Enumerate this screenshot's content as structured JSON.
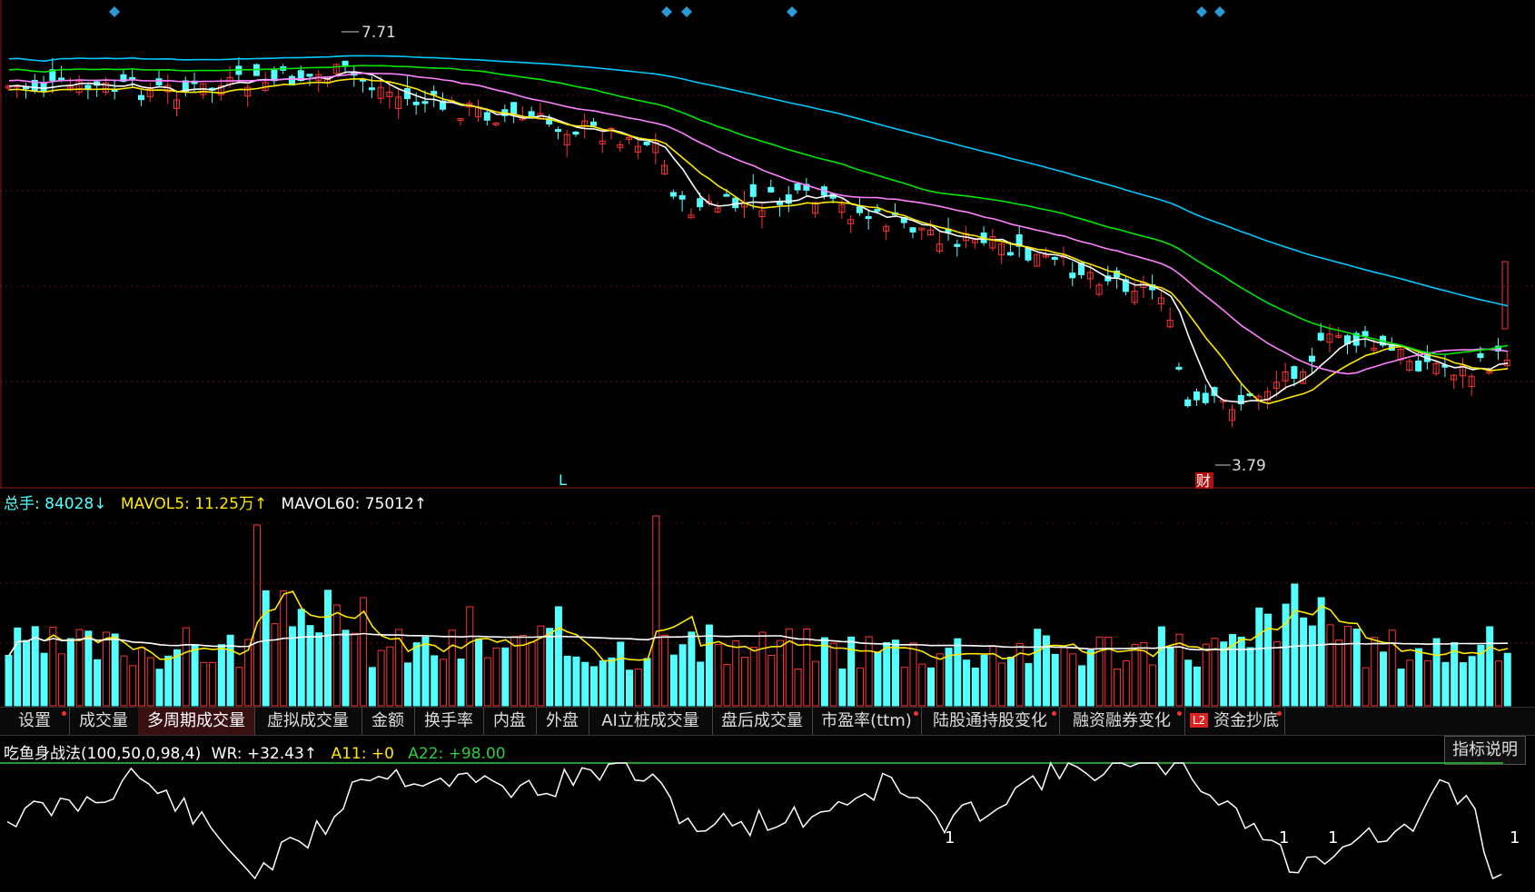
{
  "price": {
    "high_marker": "7.71",
    "low_marker": "3.79",
    "event_marker": "财",
    "l_marker": "L",
    "ma_colors": {
      "ma5": "#ffffff",
      "ma10": "#ffe800",
      "ma20": "#ff80ff",
      "ma30": "#00e600",
      "ma60": "#00c8ff"
    },
    "candle_up_color": "#ff3333",
    "candle_down_color": "#54ffff"
  },
  "volume_header": {
    "total_label": "总手:",
    "total_value": "84028↓",
    "mavol5": "MAVOL5: 11.25万↑",
    "mavol60": "MAVOL60: 75012↑"
  },
  "tabs": [
    {
      "label": "设置",
      "dot": true
    },
    {
      "label": "成交量",
      "dot": false
    },
    {
      "label": "多周期成交量",
      "dot": false,
      "active": true
    },
    {
      "label": "虚拟成交量",
      "dot": false
    },
    {
      "label": "金额",
      "dot": false
    },
    {
      "label": "换手率",
      "dot": false
    },
    {
      "label": "内盘",
      "dot": false
    },
    {
      "label": "外盘",
      "dot": false
    },
    {
      "label": "AI立桩成交量",
      "dot": false
    },
    {
      "label": "盘后成交量",
      "dot": false
    },
    {
      "label": "市盈率(ttm)",
      "dot": true
    },
    {
      "label": "陆股通持股变化",
      "dot": true
    },
    {
      "label": "融资融券变化",
      "dot": true
    },
    {
      "label": "资金抄底",
      "dot": true,
      "badge": "L2"
    }
  ],
  "oscillator": {
    "name": "吃鱼身战法(100,50,0,98,4)",
    "wr": "WR: +32.43↑",
    "a11": "A11: +0",
    "a22": "A22: +98.00",
    "explain_button": "指标说明",
    "signal_label": "1"
  }
}
